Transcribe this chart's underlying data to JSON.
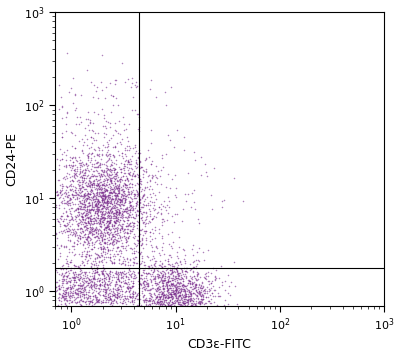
{
  "title": "",
  "xlabel": "CD3ε-FITC",
  "ylabel": "CD24-PE",
  "xlim": [
    0.7,
    1000
  ],
  "ylim": [
    0.7,
    1000
  ],
  "dot_color": "#7B2F8E",
  "dot_alpha": 0.6,
  "dot_size": 1.2,
  "quadrant_x": 4.5,
  "quadrant_y": 1.8,
  "seed": 42,
  "figsize": [
    4.0,
    3.57
  ],
  "dpi": 100
}
